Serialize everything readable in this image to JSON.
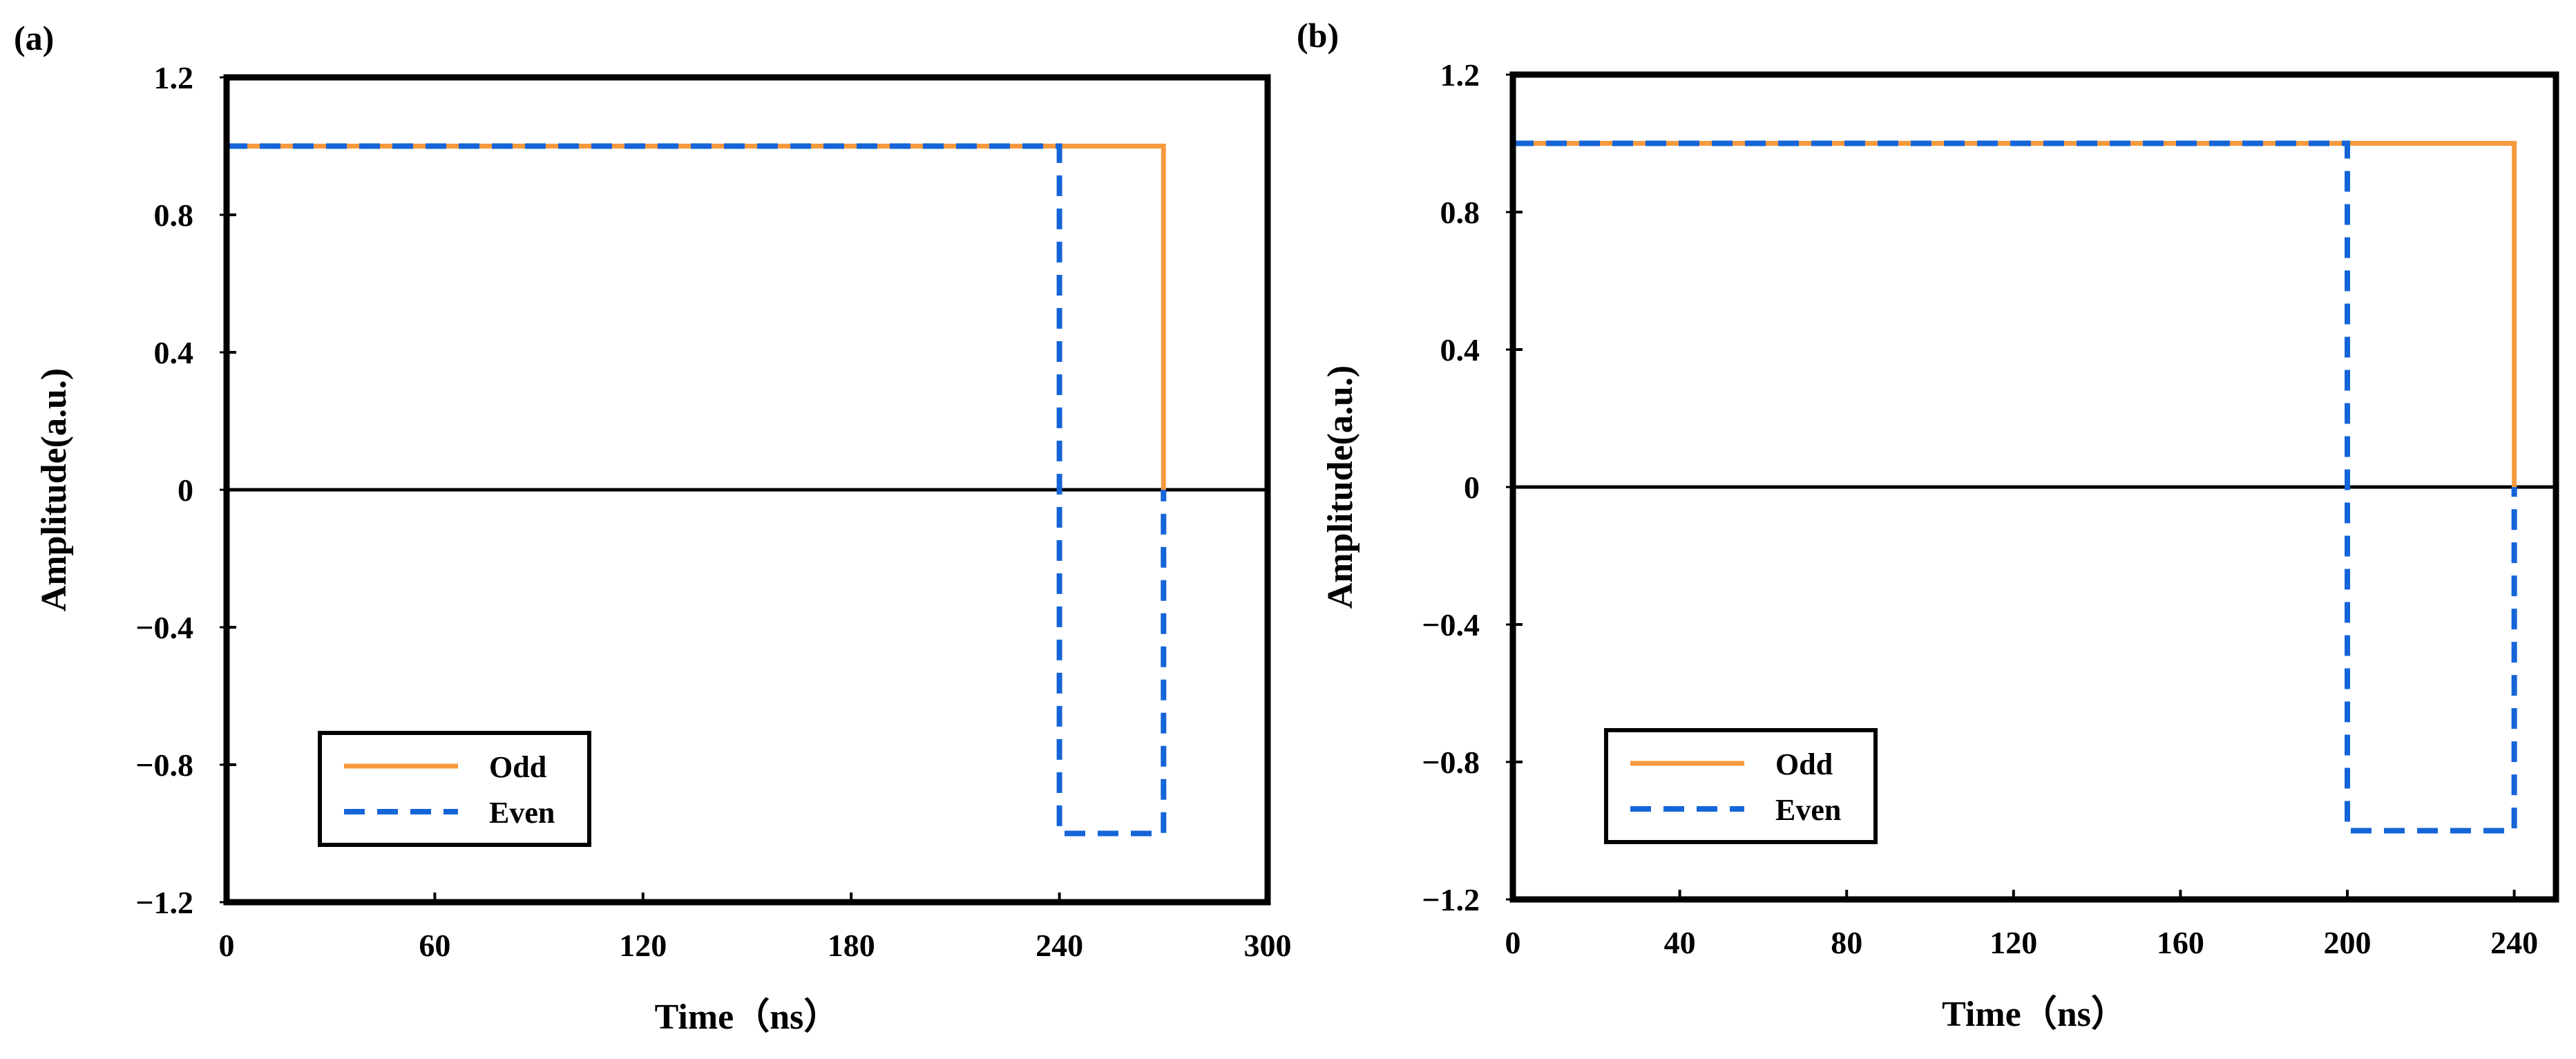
{
  "chart_data": [
    {
      "panel_label": "(a)",
      "type": "line",
      "xlabel": "Time（ns）",
      "ylabel": "Amplitude(a.u.)",
      "xlim": [
        0,
        300
      ],
      "ylim": [
        -1.2,
        1.2
      ],
      "xticks": [
        "0",
        "60",
        "120",
        "180",
        "240",
        "300"
      ],
      "yticks": [
        "1.2",
        "0.8",
        "0.4",
        "0",
        "-0.4",
        "-0.8",
        "-1.2"
      ],
      "legend_position": "bottom-left",
      "series": [
        {
          "name": "Odd",
          "style": "solid",
          "color": "#f79a3e",
          "x": [
            0,
            270,
            270
          ],
          "y": [
            1,
            1,
            0
          ]
        },
        {
          "name": "Even",
          "style": "dashed",
          "color": "#1565d8",
          "x": [
            0,
            240,
            240,
            270,
            270
          ],
          "y": [
            1,
            1,
            -1,
            -1,
            0
          ]
        }
      ]
    },
    {
      "panel_label": "(b)",
      "type": "line",
      "xlabel": "Time（ns）",
      "ylabel": "Amplitude(a.u.)",
      "xlim": [
        0,
        250
      ],
      "ylim": [
        -1.2,
        1.2
      ],
      "xticks": [
        "0",
        "40",
        "80",
        "120",
        "160",
        "200",
        "240"
      ],
      "yticks": [
        "1.2",
        "0.8",
        "0.4",
        "0",
        "-0.4",
        "-0.8",
        "-1.2"
      ],
      "legend_position": "bottom-left",
      "series": [
        {
          "name": "Odd",
          "style": "solid",
          "color": "#f79a3e",
          "x": [
            0,
            240,
            240
          ],
          "y": [
            1,
            1,
            0
          ]
        },
        {
          "name": "Even",
          "style": "dashed",
          "color": "#1565d8",
          "x": [
            0,
            200,
            200,
            240,
            240
          ],
          "y": [
            1,
            1,
            -1,
            -1,
            0
          ]
        }
      ]
    }
  ]
}
